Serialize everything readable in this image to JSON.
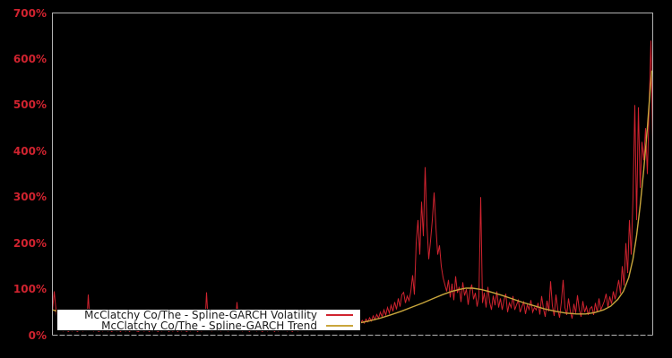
{
  "figure": {
    "background": "#000000",
    "plot_border_color": "#b3b3b3",
    "tick_label_color": "#d0232f"
  },
  "legend": {
    "entries": [
      {
        "label": "McClatchy Co/The - Spline-GARCH Volatility",
        "color": "#d0232f"
      },
      {
        "label": "McClatchy Co/The - Spline-GARCH Trend",
        "color": "#c9a63c"
      }
    ]
  },
  "chart_data": {
    "type": "line",
    "title": "",
    "xlabel": "",
    "ylabel": "",
    "ylim": [
      0,
      700
    ],
    "y_ticks": [
      0,
      100,
      200,
      300,
      400,
      500,
      600,
      700
    ],
    "y_tick_labels": [
      "0%",
      "100%",
      "200%",
      "300%",
      "400%",
      "500%",
      "600%",
      "700%"
    ],
    "x_tick_labels": [],
    "grid": false,
    "legend_position": "lower-left",
    "series": [
      {
        "name": "McClatchy Co/The - Spline-GARCH Volatility",
        "color": "#d0232f",
        "unit": "%",
        "values": [
          50,
          95,
          55,
          28,
          15,
          11,
          9,
          13,
          10,
          8,
          12,
          9,
          14,
          10,
          8,
          11,
          13,
          9,
          12,
          10,
          88,
          25,
          12,
          9,
          13,
          10,
          8,
          12,
          9,
          11,
          14,
          9,
          12,
          8,
          10,
          13,
          9,
          11,
          8,
          12,
          10,
          9,
          13,
          8,
          11,
          10,
          12,
          9,
          8,
          11,
          13,
          9,
          10,
          12,
          8,
          11,
          9,
          13,
          10,
          8,
          12,
          9,
          11,
          10,
          13,
          8,
          12,
          9,
          10,
          11,
          8,
          13,
          9,
          12,
          10,
          8,
          11,
          9,
          13,
          10,
          12,
          8,
          11,
          9,
          10,
          12,
          93,
          22,
          11,
          9,
          13,
          10,
          15,
          11,
          9,
          14,
          10,
          12,
          9,
          13,
          10,
          11,
          15,
          72,
          20,
          12,
          9,
          13,
          10,
          11,
          8,
          14,
          10,
          12,
          9,
          11,
          13,
          8,
          10,
          12,
          9,
          14,
          10,
          11,
          8,
          13,
          9,
          12,
          10,
          11,
          14,
          9,
          12,
          10,
          8,
          13,
          11,
          9,
          12,
          10,
          14,
          16,
          12,
          18,
          14,
          11,
          17,
          13,
          19,
          15,
          12,
          18,
          14,
          20,
          16,
          13,
          19,
          15,
          22,
          17,
          14,
          20,
          16,
          23,
          18,
          15,
          21,
          17,
          24,
          19,
          26,
          21,
          28,
          32,
          26,
          35,
          29,
          38,
          31,
          42,
          34,
          45,
          37,
          50,
          40,
          55,
          44,
          60,
          48,
          65,
          52,
          72,
          56,
          80,
          62,
          88,
          93,
          70,
          85,
          75,
          95,
          130,
          88,
          200,
          250,
          175,
          290,
          215,
          365,
          240,
          165,
          205,
          250,
          310,
          235,
          175,
          195,
          150,
          125,
          110,
          95,
          120,
          82,
          112,
          76,
          128,
          92,
          105,
          72,
          115,
          86,
          100,
          66,
          96,
          110,
          78,
          92,
          62,
          84,
          300,
          70,
          92,
          60,
          105,
          72,
          55,
          86,
          65,
          95,
          60,
          80,
          55,
          76,
          90,
          50,
          70,
          60,
          85,
          55,
          66,
          76,
          50,
          62,
          72,
          46,
          66,
          56,
          76,
          50,
          60,
          55,
          70,
          45,
          85,
          58,
          40,
          75,
          52,
          117,
          64,
          42,
          88,
          56,
          38,
          72,
          120,
          60,
          44,
          80,
          52,
          36,
          68,
          48,
          87,
          56,
          40,
          74,
          50,
          62,
          44,
          58,
          62,
          44,
          70,
          50,
          80,
          55,
          64,
          74,
          90,
          60,
          84,
          68,
          95,
          78,
          98,
          120,
          90,
          150,
          108,
          200,
          135,
          250,
          175,
          300,
          500,
          250,
          495,
          320,
          420,
          380,
          450,
          350,
          500,
          640,
          420
        ]
      },
      {
        "name": "McClatchy Co/The - Spline-GARCH Trend",
        "color": "#c9a63c",
        "unit": "%",
        "x": [
          0.0,
          0.018,
          0.048,
          0.092,
          0.152,
          0.212,
          0.271,
          0.331,
          0.39,
          0.435,
          0.48,
          0.51,
          0.528,
          0.546,
          0.563,
          0.581,
          0.599,
          0.617,
          0.635,
          0.65,
          0.665,
          0.677,
          0.689,
          0.7,
          0.715,
          0.73,
          0.748,
          0.766,
          0.784,
          0.802,
          0.82,
          0.838,
          0.855,
          0.873,
          0.888,
          0.903,
          0.918,
          0.93,
          0.942,
          0.951,
          0.96,
          0.967,
          0.973,
          0.979,
          0.985,
          0.991,
          0.9955,
          0.9985
        ],
        "values": [
          55,
          48,
          40,
          33,
          27,
          22,
          19,
          17,
          16,
          17,
          21,
          26,
          31,
          37,
          44,
          52,
          61,
          70,
          80,
          88,
          95,
          99,
          102,
          102,
          99,
          94,
          87,
          79,
          71,
          64,
          57,
          52,
          48,
          46,
          46,
          49,
          55,
          63,
          78,
          95,
          125,
          165,
          215,
          280,
          360,
          450,
          530,
          575
        ]
      }
    ]
  }
}
